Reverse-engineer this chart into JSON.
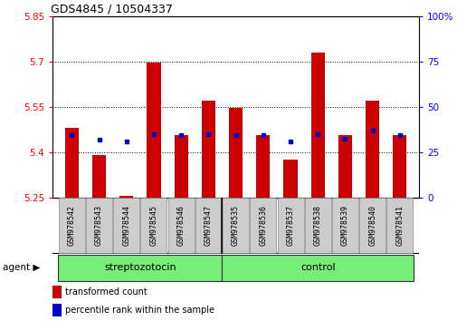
{
  "title": "GDS4845 / 10504337",
  "samples": [
    "GSM978542",
    "GSM978543",
    "GSM978544",
    "GSM978545",
    "GSM978546",
    "GSM978547",
    "GSM978535",
    "GSM978536",
    "GSM978537",
    "GSM978538",
    "GSM978539",
    "GSM978540",
    "GSM978541"
  ],
  "red_values": [
    5.48,
    5.39,
    5.255,
    5.695,
    5.455,
    5.57,
    5.545,
    5.455,
    5.375,
    5.73,
    5.455,
    5.57,
    5.455
  ],
  "blue_values": [
    5.455,
    5.44,
    5.435,
    5.46,
    5.455,
    5.46,
    5.455,
    5.455,
    5.435,
    5.46,
    5.445,
    5.47,
    5.455
  ],
  "y_min": 5.25,
  "y_max": 5.85,
  "y_ticks_red": [
    5.25,
    5.4,
    5.55,
    5.7,
    5.85
  ],
  "y_ticks_blue": [
    0,
    25,
    50,
    75,
    100
  ],
  "group1": "streptozotocin",
  "group2": "control",
  "n_group1": 6,
  "n_group2": 7,
  "bar_color": "#cc0000",
  "dot_color": "#0000cc",
  "agent_label": "agent",
  "legend1": "transformed count",
  "legend2": "percentile rank within the sample",
  "group_bg_color": "#77ee77",
  "tick_bg_color": "#cccccc",
  "bar_base": 5.25,
  "fig_width": 5.06,
  "fig_height": 3.54,
  "dpi": 100
}
